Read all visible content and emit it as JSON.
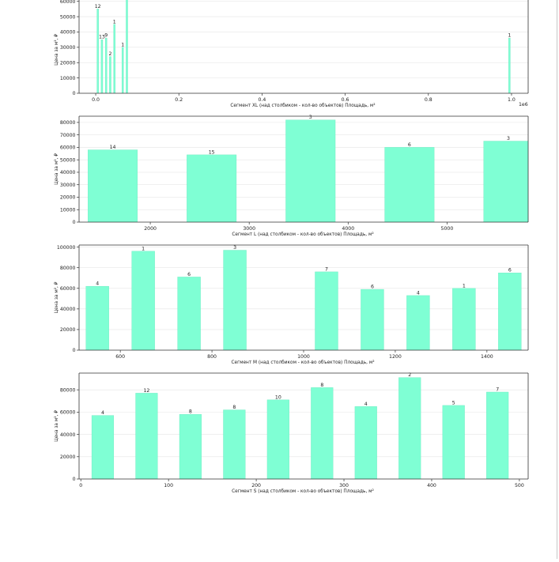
{
  "colors": {
    "bar": "#7fffd4",
    "bar_edge": "#6ee8c0",
    "grid": "#e6e6e6",
    "axis": "#333333"
  },
  "chart_data": [
    {
      "type": "bar",
      "xlabel": "Сегмент XL (над столбиком - кол-во объектов)   Площадь, м²",
      "ylabel": "Цена за м², ₽",
      "x_scale_label": "1e6",
      "xlim": [
        -0.04,
        1.04
      ],
      "ylim": [
        0,
        65000
      ],
      "xticks": [
        0.0,
        0.2,
        0.4,
        0.6,
        0.8,
        1.0
      ],
      "xtick_labels": [
        "0.0",
        "0.2",
        "0.4",
        "0.6",
        "0.8",
        "1.0"
      ],
      "yticks": [
        0,
        10000,
        20000,
        30000,
        40000,
        50000,
        60000
      ],
      "bar_width": 0.004,
      "grid": true,
      "bars": [
        {
          "x": 0.005,
          "y": 55000,
          "label": "12"
        },
        {
          "x": 0.015,
          "y": 35000,
          "label": "13"
        },
        {
          "x": 0.025,
          "y": 36000,
          "label": "9"
        },
        {
          "x": 0.035,
          "y": 24000,
          "label": "2"
        },
        {
          "x": 0.045,
          "y": 45000,
          "label": "1"
        },
        {
          "x": 0.065,
          "y": 30000,
          "label": "1"
        },
        {
          "x": 0.075,
          "y": 66000,
          "label": ""
        },
        {
          "x": 0.995,
          "y": 36000,
          "label": "1"
        }
      ]
    },
    {
      "type": "bar",
      "xlabel": "Сегмент L (над столбиком - кол-во объектов)   Площадь, м²",
      "ylabel": "Цена за м², ₽",
      "xlim": [
        1280,
        5820
      ],
      "ylim": [
        0,
        85000
      ],
      "xticks": [
        2000,
        3000,
        4000,
        5000
      ],
      "xtick_labels": [
        "2000",
        "3000",
        "4000",
        "5000"
      ],
      "yticks": [
        0,
        10000,
        20000,
        30000,
        40000,
        50000,
        60000,
        70000,
        80000
      ],
      "bar_width": 500,
      "grid": true,
      "bars": [
        {
          "x": 1620,
          "y": 58000,
          "label": "14"
        },
        {
          "x": 2620,
          "y": 54000,
          "label": "15"
        },
        {
          "x": 3620,
          "y": 82000,
          "label": "3"
        },
        {
          "x": 4620,
          "y": 60000,
          "label": "6"
        },
        {
          "x": 5620,
          "y": 65000,
          "label": "3"
        }
      ]
    },
    {
      "type": "bar",
      "xlabel": "Сегмент M (над столбиком - кол-во объектов)   Площадь, м²",
      "ylabel": "Цена за м², ₽",
      "xlim": [
        510,
        1490
      ],
      "ylim": [
        0,
        102000
      ],
      "xticks": [
        600,
        800,
        1000,
        1200,
        1400
      ],
      "xtick_labels": [
        "600",
        "800",
        "1000",
        "1200",
        "1400"
      ],
      "yticks": [
        0,
        20000,
        40000,
        60000,
        80000,
        100000
      ],
      "bar_width": 50,
      "grid": true,
      "bars": [
        {
          "x": 550,
          "y": 62000,
          "label": "4"
        },
        {
          "x": 650,
          "y": 96000,
          "label": "1"
        },
        {
          "x": 750,
          "y": 71000,
          "label": "6"
        },
        {
          "x": 850,
          "y": 97000,
          "label": "3"
        },
        {
          "x": 1050,
          "y": 76000,
          "label": "7"
        },
        {
          "x": 1150,
          "y": 59000,
          "label": "6"
        },
        {
          "x": 1250,
          "y": 53000,
          "label": "4"
        },
        {
          "x": 1350,
          "y": 60000,
          "label": "1"
        },
        {
          "x": 1450,
          "y": 75000,
          "label": "6"
        }
      ]
    },
    {
      "type": "bar",
      "xlabel": "Сегмент S (над столбиком - кол-во объектов)   Площадь, м²",
      "ylabel": "Цена за м², ₽",
      "xlim": [
        -2,
        510
      ],
      "ylim": [
        0,
        95000
      ],
      "xticks": [
        0,
        100,
        200,
        300,
        400,
        500
      ],
      "xtick_labels": [
        "0",
        "100",
        "200",
        "300",
        "400",
        "500"
      ],
      "yticks": [
        0,
        20000,
        40000,
        60000,
        80000
      ],
      "bar_width": 25,
      "grid": true,
      "bars": [
        {
          "x": 25,
          "y": 57000,
          "label": "4"
        },
        {
          "x": 75,
          "y": 77000,
          "label": "12"
        },
        {
          "x": 125,
          "y": 58000,
          "label": "8"
        },
        {
          "x": 175,
          "y": 62000,
          "label": "8"
        },
        {
          "x": 225,
          "y": 71000,
          "label": "10"
        },
        {
          "x": 275,
          "y": 82000,
          "label": "8"
        },
        {
          "x": 325,
          "y": 65000,
          "label": "4"
        },
        {
          "x": 375,
          "y": 91000,
          "label": "2"
        },
        {
          "x": 425,
          "y": 66000,
          "label": "5"
        },
        {
          "x": 475,
          "y": 78000,
          "label": "7"
        }
      ]
    }
  ]
}
